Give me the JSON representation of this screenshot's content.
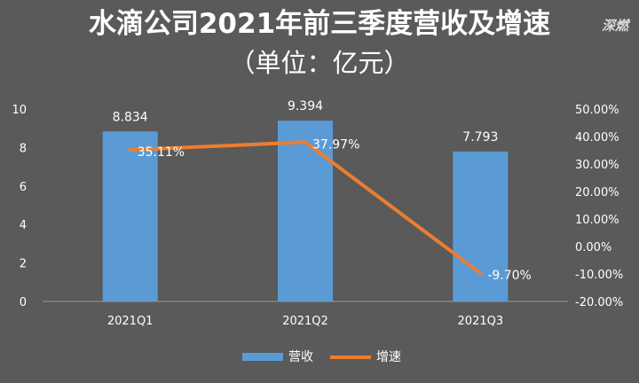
{
  "watermark": "深燃",
  "chart_data": {
    "type": "bar",
    "title": "水滴公司2021年前三季度营收及增速",
    "subtitle": "（单位：亿元）",
    "categories": [
      "2021Q1",
      "2021Q2",
      "2021Q3"
    ],
    "series": [
      {
        "name": "营收",
        "type": "bar",
        "axis": "left",
        "values": [
          8.834,
          9.394,
          7.793
        ],
        "labels": [
          "8.834",
          "9.394",
          "7.793"
        ],
        "color": "#5b9bd5"
      },
      {
        "name": "增速",
        "type": "line",
        "axis": "right",
        "values": [
          35.11,
          37.97,
          -9.7
        ],
        "labels": [
          "35.11%",
          "37.97%",
          "-9.70%"
        ],
        "color": "#ed7d31"
      }
    ],
    "y_left": {
      "min": 0,
      "max": 10,
      "ticks": [
        "0",
        "2",
        "4",
        "6",
        "8",
        "10"
      ]
    },
    "y_right": {
      "min": -20,
      "max": 50,
      "ticks": [
        "-20.00%",
        "-10.00%",
        "0.00%",
        "10.00%",
        "20.00%",
        "30.00%",
        "40.00%",
        "50.00%"
      ]
    },
    "legend": "bottom",
    "grid": false,
    "background": "#5a5a5a"
  }
}
